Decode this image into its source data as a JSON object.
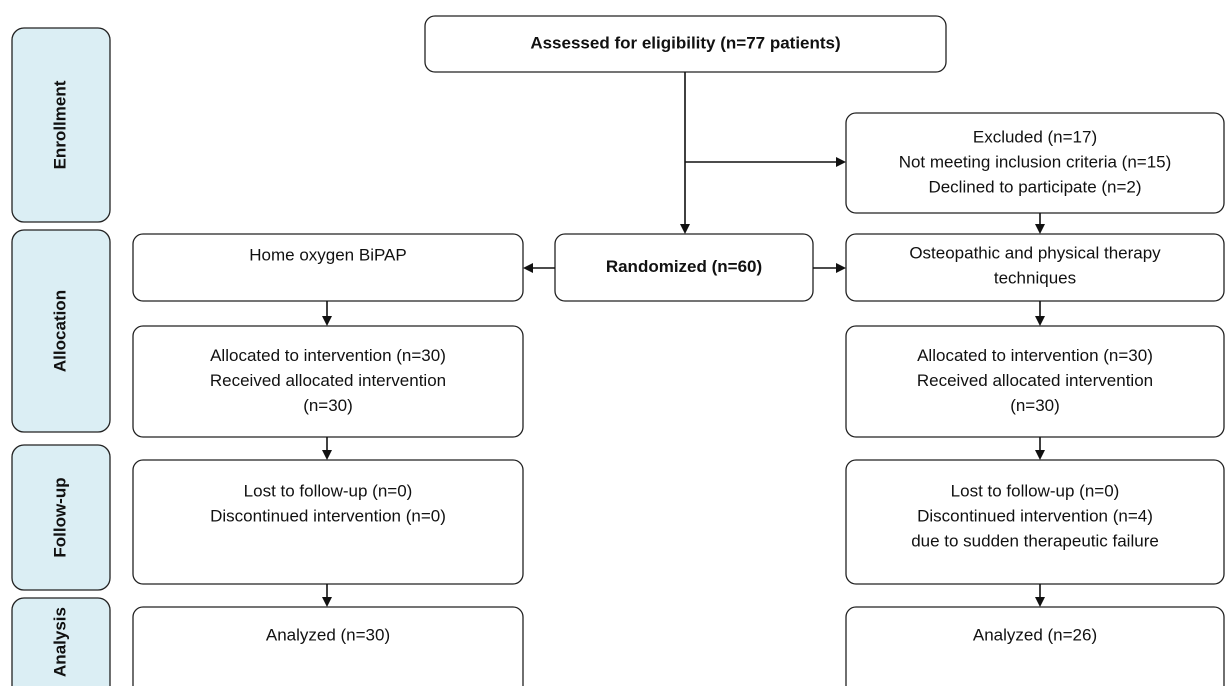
{
  "stages": [
    "Enrollment",
    "Allocation",
    "Follow-up",
    "Analysis"
  ],
  "nodes": {
    "assessed": [
      "Assessed for eligibility (n=77 patients)"
    ],
    "excluded": [
      "Excluded (n=17)",
      "Not meeting inclusion criteria (n=15)",
      "Declined to participate (n=2)"
    ],
    "randomized": [
      "Randomized (n=60)"
    ],
    "left_arm": [
      "Home oxygen BiPAP"
    ],
    "right_arm": [
      "Osteopathic and physical therapy",
      "techniques"
    ],
    "left_allocated": [
      "Allocated to intervention (n=30)",
      "Received allocated intervention",
      "(n=30)"
    ],
    "right_allocated": [
      "Allocated to intervention (n=30)",
      "Received allocated intervention",
      "(n=30)"
    ],
    "left_followup": [
      "Lost to follow-up (n=0)",
      "Discontinued intervention (n=0)"
    ],
    "right_followup": [
      "Lost to follow-up (n=0)",
      "Discontinued intervention (n=4)",
      "due to sudden therapeutic failure"
    ],
    "left_analysis": [
      "Analyzed (n=30)"
    ],
    "right_analysis": [
      "Analyzed (n=26)"
    ]
  }
}
